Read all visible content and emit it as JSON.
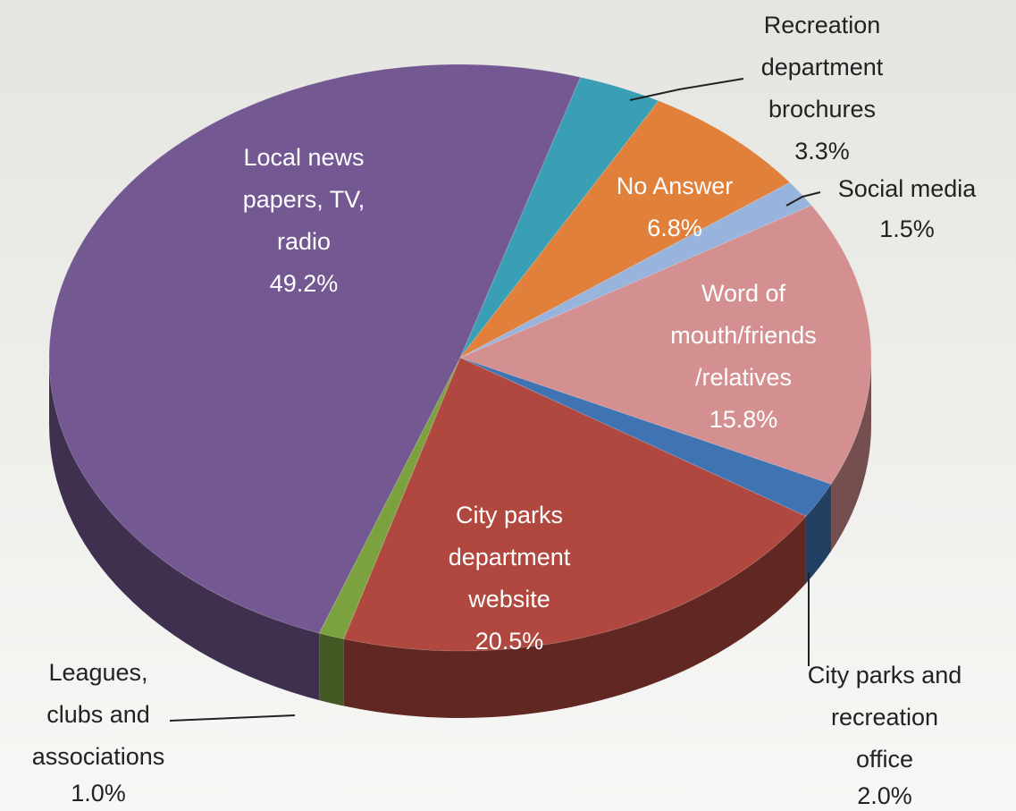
{
  "chart_data": {
    "type": "pie",
    "categories": [
      [
        "Recreation",
        "department",
        "brochures"
      ],
      [
        "No Answer"
      ],
      [
        "Social media"
      ],
      [
        "Word of",
        "mouth/friends",
        "/relatives"
      ],
      [
        "City parks and",
        "recreation",
        "office"
      ],
      [
        "City parks",
        "department",
        "website"
      ],
      [
        "Leagues,",
        "clubs and",
        "associations"
      ],
      [
        "Local news",
        "papers, TV,",
        "radio"
      ]
    ],
    "values": [
      3.3,
      6.8,
      1.5,
      15.8,
      2.0,
      20.5,
      1.0,
      49.2
    ],
    "value_labels": [
      "3.3%",
      "6.8%",
      "1.5%",
      "15.8%",
      "2.0%",
      "20.5%",
      "1.0%",
      "49.2%"
    ],
    "colors": [
      "#3a9fb4",
      "#e0803a",
      "#98b4dd",
      "#d49090",
      "#3f73b2",
      "#b0483f",
      "#7ca23f",
      "#735892"
    ]
  }
}
